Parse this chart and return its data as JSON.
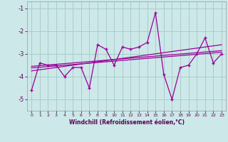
{
  "title": "",
  "xlabel": "Windchill (Refroidissement éolien,°C)",
  "background_color": "#cce8e8",
  "grid_color": "#aacccc",
  "line_color": "#990099",
  "x": [
    0,
    1,
    2,
    3,
    4,
    5,
    6,
    7,
    8,
    9,
    10,
    11,
    12,
    13,
    14,
    15,
    16,
    17,
    18,
    19,
    20,
    21,
    22,
    23
  ],
  "y_main": [
    -4.6,
    -3.4,
    -3.5,
    -3.5,
    -4.0,
    -3.6,
    -3.6,
    -4.5,
    -2.6,
    -2.8,
    -3.5,
    -2.7,
    -2.8,
    -2.7,
    -2.5,
    -1.2,
    -3.9,
    -5.0,
    -3.6,
    -3.5,
    -3.0,
    -2.3,
    -3.4,
    -3.0
  ],
  "y_reg1": [
    -3.75,
    -3.7,
    -3.65,
    -3.6,
    -3.55,
    -3.5,
    -3.45,
    -3.4,
    -3.35,
    -3.3,
    -3.25,
    -3.2,
    -3.15,
    -3.1,
    -3.05,
    -3.0,
    -2.95,
    -2.9,
    -2.85,
    -2.8,
    -2.75,
    -2.7,
    -2.65,
    -2.6
  ],
  "y_reg2": [
    -3.55,
    -3.52,
    -3.49,
    -3.46,
    -3.43,
    -3.4,
    -3.37,
    -3.34,
    -3.31,
    -3.28,
    -3.25,
    -3.22,
    -3.19,
    -3.16,
    -3.13,
    -3.1,
    -3.07,
    -3.04,
    -3.01,
    -2.98,
    -2.95,
    -2.92,
    -2.89,
    -2.86
  ],
  "y_reg3": [
    -3.62,
    -3.59,
    -3.56,
    -3.53,
    -3.5,
    -3.47,
    -3.44,
    -3.41,
    -3.38,
    -3.35,
    -3.32,
    -3.29,
    -3.26,
    -3.23,
    -3.2,
    -3.17,
    -3.14,
    -3.11,
    -3.08,
    -3.05,
    -3.02,
    -2.99,
    -2.96,
    -2.93
  ],
  "ylim": [
    -5.5,
    -0.7
  ],
  "yticks": [
    -5,
    -4,
    -3,
    -2,
    -1
  ],
  "xlim": [
    -0.5,
    23.5
  ],
  "xticks": [
    0,
    1,
    2,
    3,
    4,
    5,
    6,
    7,
    8,
    9,
    10,
    11,
    12,
    13,
    14,
    15,
    16,
    17,
    18,
    19,
    20,
    21,
    22,
    23
  ]
}
